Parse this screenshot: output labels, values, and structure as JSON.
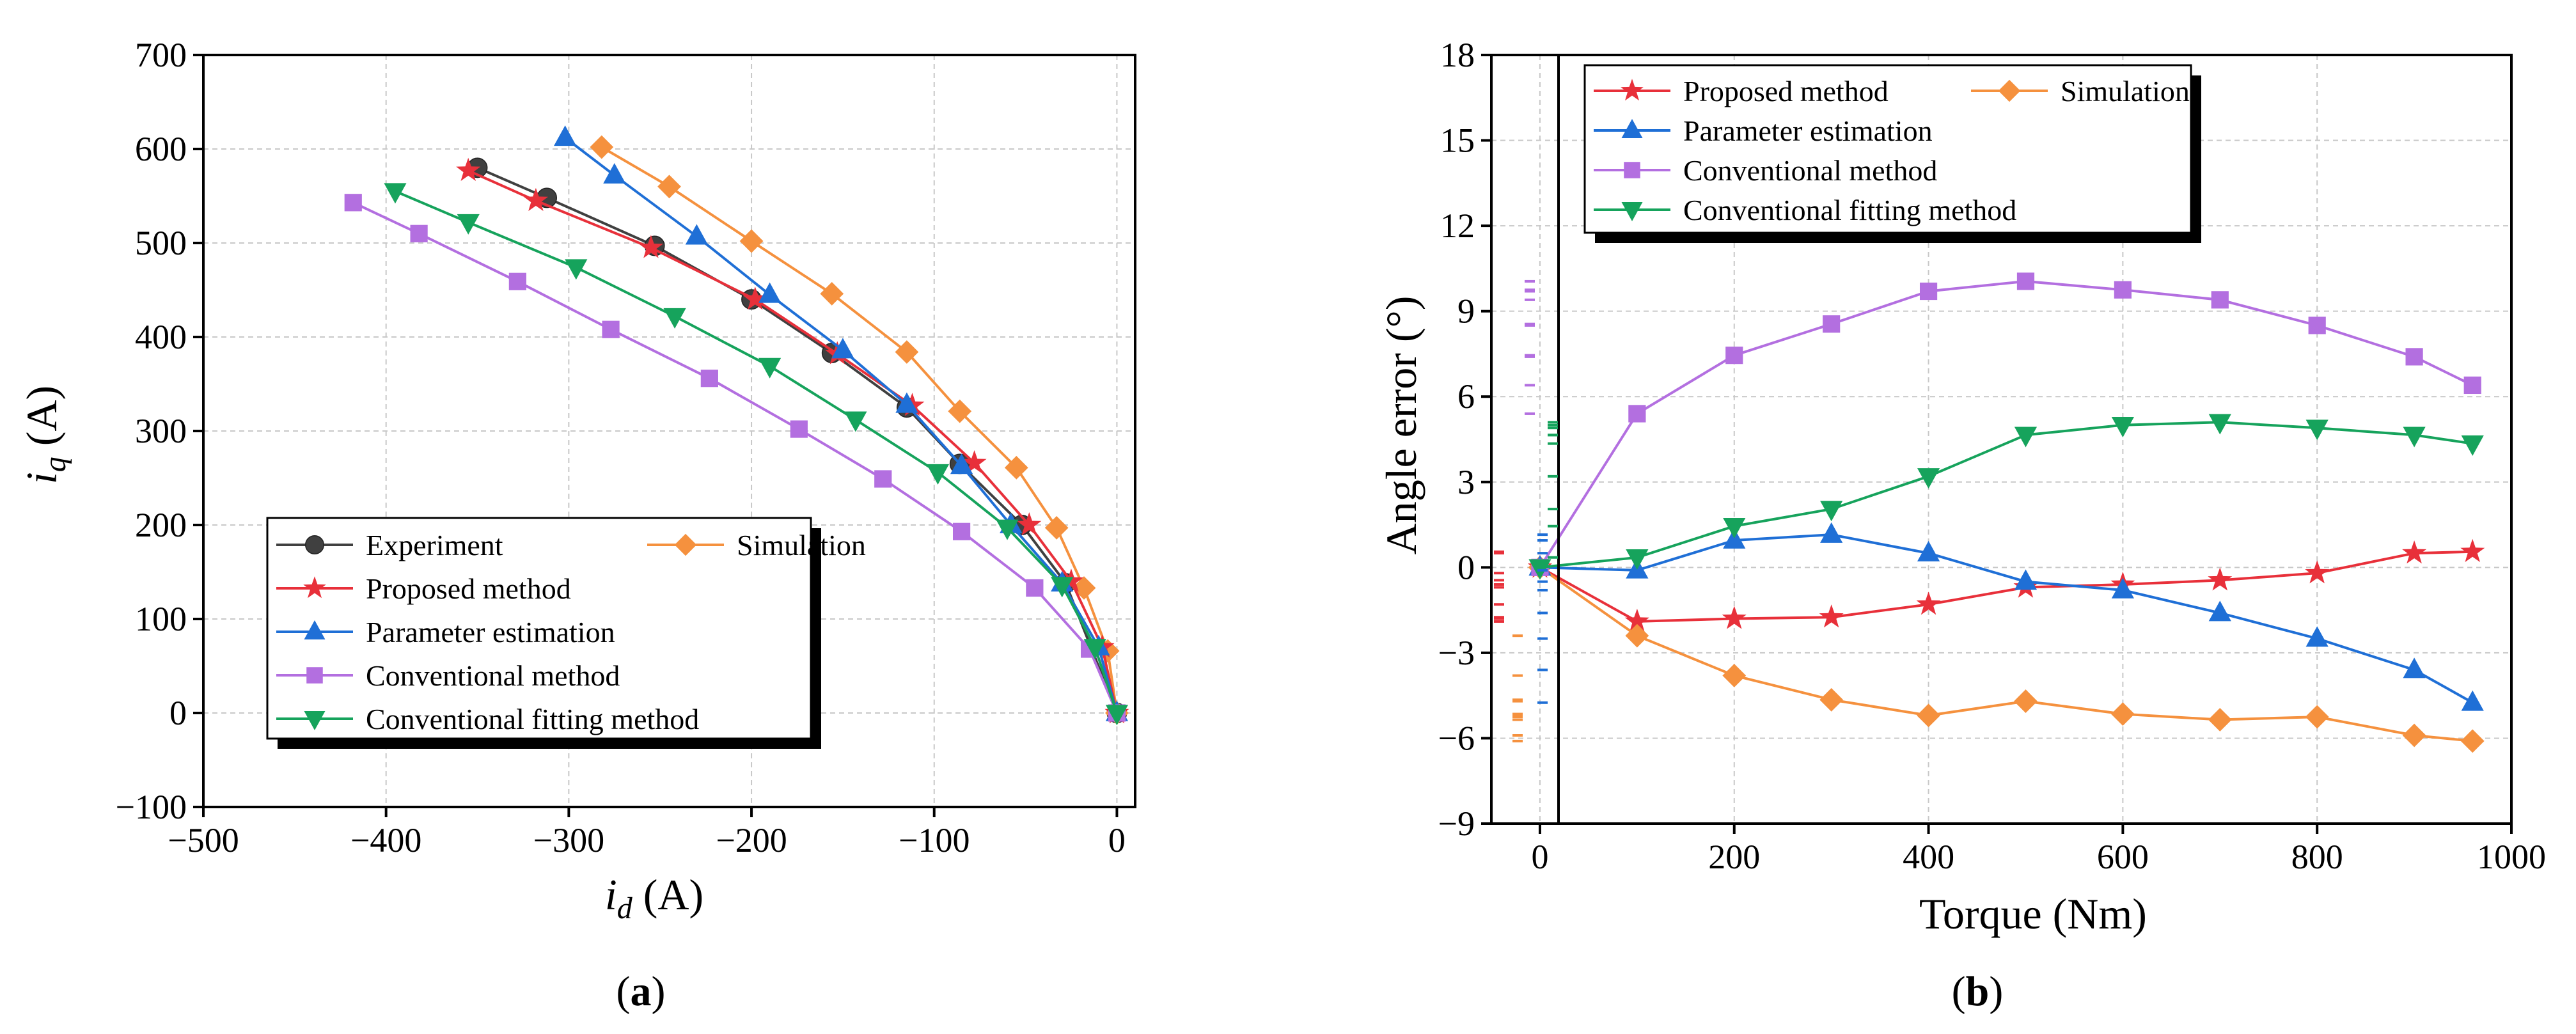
{
  "chart_data": [
    {
      "type": "line",
      "panel_label": "(a)",
      "panel_letter": "a",
      "xlabel": "i",
      "xlabel_sub": "d",
      "xlabel_unit": " (A)",
      "ylabel": "i",
      "ylabel_sub": "q",
      "ylabel_unit": " (A)",
      "xlim": [
        -500,
        10
      ],
      "ylim": [
        -100,
        700
      ],
      "xticks": [
        -500,
        -400,
        -300,
        -200,
        -100,
        0
      ],
      "yticks": [
        -100,
        0,
        100,
        200,
        300,
        400,
        500,
        600,
        700
      ],
      "xtick_labels": [
        "−500",
        "−400",
        "−300",
        "−200",
        "−100",
        "0"
      ],
      "ytick_labels": [
        "−100",
        "0",
        "100",
        "200",
        "300",
        "400",
        "500",
        "600",
        "700"
      ],
      "grid": true,
      "legend_position": "bottom-right",
      "series": [
        {
          "name": "Experiment",
          "color": "#404040",
          "marker": "circle",
          "x": [
            -350,
            -312,
            -253,
            -200,
            -156,
            -115,
            -86,
            -52,
            -28,
            0
          ],
          "y": [
            580,
            548,
            497,
            440,
            383,
            325,
            265,
            200,
            138,
            0
          ]
        },
        {
          "name": "Simulation",
          "color": "#f5913e",
          "marker": "diamond",
          "x": [
            -282,
            -245,
            -200,
            -156,
            -115,
            -86,
            -55,
            -33,
            -18,
            -5,
            0
          ],
          "y": [
            602,
            560,
            502,
            446,
            384,
            321,
            261,
            197,
            133,
            66,
            0
          ]
        },
        {
          "name": "Proposed method",
          "color": "#e8303a",
          "marker": "star",
          "x": [
            -355,
            -318,
            -255,
            -198,
            -153,
            -112,
            -78,
            -48,
            -25,
            -8,
            0
          ],
          "y": [
            577,
            545,
            495,
            440,
            382,
            327,
            266,
            200,
            140,
            70,
            0
          ]
        },
        {
          "name": "Parameter estimation",
          "color": "#1f6fd6",
          "marker": "triangle-up",
          "x": [
            -302,
            -275,
            -230,
            -190,
            -150,
            -115,
            -85,
            -58,
            -30,
            -10,
            0
          ],
          "y": [
            612,
            572,
            507,
            445,
            386,
            328,
            263,
            200,
            138,
            70,
            0
          ]
        },
        {
          "name": "Conventional method",
          "color": "#b36fe0",
          "marker": "square",
          "x": [
            -418,
            -382,
            -328,
            -277,
            -223,
            -174,
            -128,
            -85,
            -45,
            -15,
            0
          ],
          "y": [
            543,
            510,
            459,
            408,
            356,
            302,
            249,
            193,
            133,
            68,
            0
          ]
        },
        {
          "name": "Conventional fitting method",
          "color": "#16a35c",
          "marker": "triangle-down",
          "x": [
            -395,
            -355,
            -296,
            -242,
            -190,
            -143,
            -98,
            -60,
            -30,
            -12,
            0
          ],
          "y": [
            555,
            522,
            474,
            422,
            369,
            312,
            256,
            197,
            136,
            70,
            0
          ]
        }
      ]
    },
    {
      "type": "line",
      "panel_label": "(b)",
      "panel_letter": "b",
      "xlabel": "Torque (Nm)",
      "ylabel": "Angle error (°)",
      "xlim": [
        -50,
        1000
      ],
      "ylim": [
        -9,
        18
      ],
      "xticks": [
        0,
        200,
        400,
        600,
        800,
        1000
      ],
      "yticks": [
        -9,
        -6,
        -3,
        0,
        3,
        6,
        9,
        12,
        15,
        18
      ],
      "xtick_labels": [
        "0",
        "200",
        "400",
        "600",
        "800",
        "1000"
      ],
      "ytick_labels": [
        "−9",
        "−6",
        "−3",
        "0",
        "3",
        "6",
        "9",
        "12",
        "15",
        "18"
      ],
      "grid": true,
      "legend_position": "top-left",
      "x": [
        0,
        100,
        200,
        300,
        400,
        500,
        600,
        700,
        800,
        900,
        960
      ],
      "series": [
        {
          "name": "Proposed method",
          "color": "#e8303a",
          "marker": "star",
          "values": [
            0,
            -1.9,
            -1.8,
            -1.75,
            -1.3,
            -0.7,
            -0.6,
            -0.45,
            -0.2,
            0.5,
            0.55
          ]
        },
        {
          "name": "Simulation",
          "color": "#f5913e",
          "marker": "diamond",
          "values": [
            0,
            -2.4,
            -3.8,
            -4.65,
            -5.2,
            -4.7,
            -5.15,
            -5.35,
            -5.25,
            -5.9,
            -6.1
          ]
        },
        {
          "name": "Parameter estimation",
          "color": "#1f6fd6",
          "marker": "triangle-up",
          "values": [
            0,
            -0.1,
            0.95,
            1.15,
            0.5,
            -0.5,
            -0.8,
            -1.6,
            -2.5,
            -3.6,
            -4.75
          ]
        },
        {
          "name": "Conventional method",
          "color": "#b36fe0",
          "marker": "square",
          "values": [
            0,
            5.4,
            7.45,
            8.55,
            9.7,
            10.05,
            9.75,
            9.4,
            8.5,
            7.4,
            6.4
          ]
        },
        {
          "name": "Conventional fitting method",
          "color": "#16a35c",
          "marker": "triangle-down",
          "values": [
            0,
            0.35,
            1.45,
            2.05,
            3.2,
            4.65,
            5.0,
            5.1,
            4.9,
            4.65,
            4.35
          ]
        }
      ],
      "legend_rows": [
        [
          "Proposed method",
          "Simulation"
        ],
        [
          "Parameter estimation"
        ],
        [
          "Conventional method"
        ],
        [
          "Conventional fitting method"
        ]
      ]
    }
  ]
}
